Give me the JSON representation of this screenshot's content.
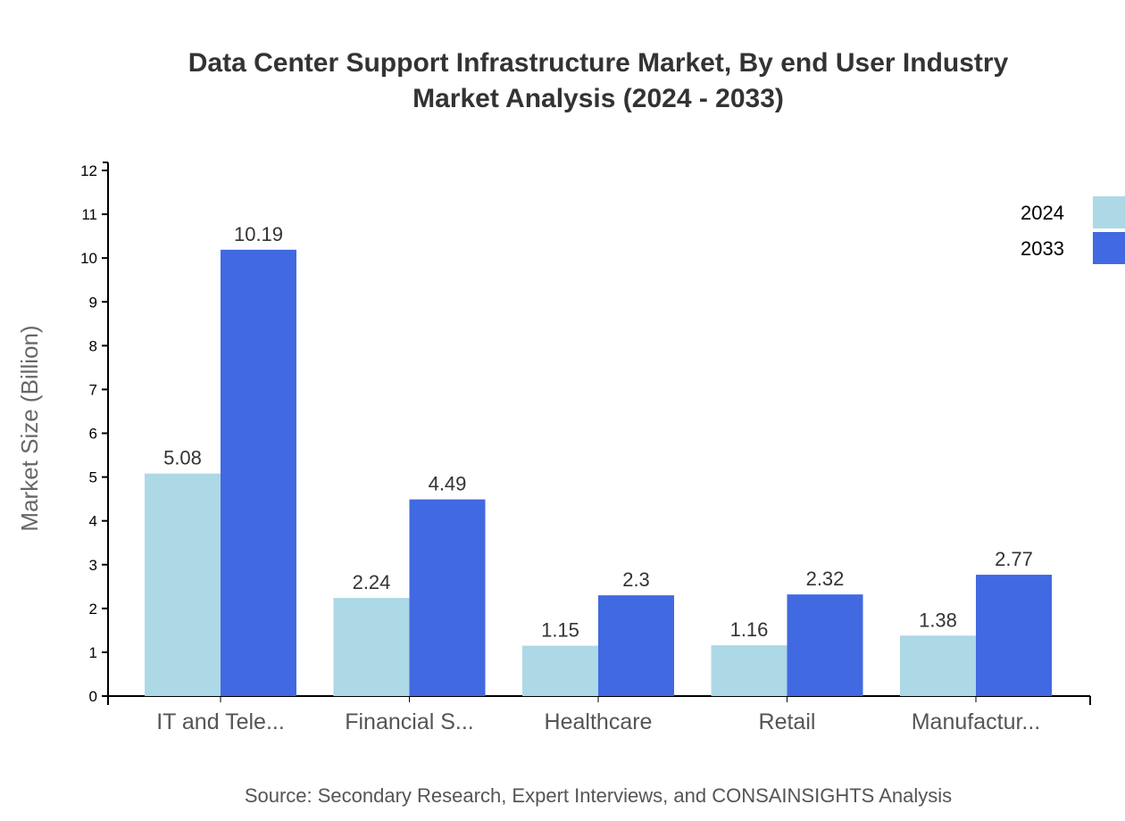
{
  "chart_data": {
    "type": "bar",
    "title": "Data Center Support Infrastructure Market, By end User Industry",
    "subtitle": "Market Analysis (2024 - 2033)",
    "ylabel": "Market Size (Billion)",
    "xlabel": "",
    "source": "Source: Secondary Research, Expert Interviews, and CONSAINSIGHTS Analysis",
    "categories": [
      "IT and Tele...",
      "Financial S...",
      "Healthcare",
      "Retail",
      "Manufactur..."
    ],
    "series": [
      {
        "name": "2024",
        "color": "#ADD8E6",
        "values": [
          5.08,
          2.24,
          1.15,
          1.16,
          1.38
        ]
      },
      {
        "name": "2033",
        "color": "#4169E1",
        "values": [
          10.19,
          4.49,
          2.3,
          2.32,
          2.77
        ]
      }
    ],
    "ylim": [
      0,
      12.2
    ],
    "yticks": [
      0,
      1,
      2,
      3,
      4,
      5,
      6,
      7,
      8,
      9,
      10,
      11,
      12
    ],
    "grid": false,
    "legend": "top-right"
  }
}
